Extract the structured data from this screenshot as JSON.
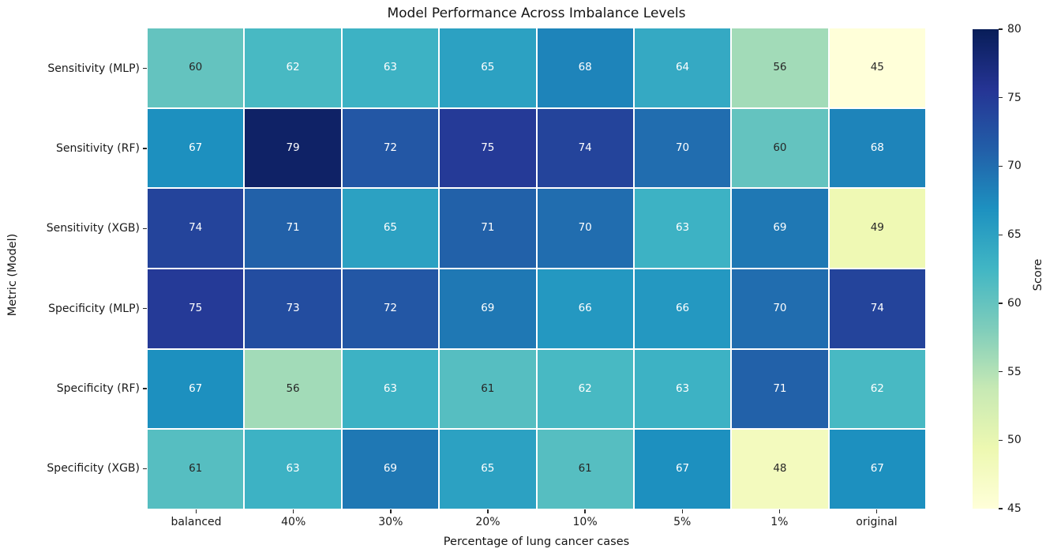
{
  "figure": {
    "title": "Model Performance Across Imbalance Levels",
    "xlabel": "Percentage of lung cancer cases",
    "ylabel": "Metric (Model)"
  },
  "chart_data": {
    "type": "heatmap",
    "title": "Model Performance Across Imbalance Levels",
    "xlabel": "Percentage of lung cancer cases",
    "ylabel": "Metric (Model)",
    "columns": [
      "balanced",
      "40%",
      "30%",
      "20%",
      "10%",
      "5%",
      "1%",
      "original"
    ],
    "rows": [
      "Sensitivity (MLP)",
      "Sensitivity (RF)",
      "Sensitivity (XGB)",
      "Specificity (MLP)",
      "Specificity (RF)",
      "Specificity (XGB)"
    ],
    "values": [
      [
        60,
        62,
        63,
        65,
        68,
        64,
        56,
        45
      ],
      [
        67,
        79,
        72,
        75,
        74,
        70,
        60,
        68
      ],
      [
        74,
        71,
        65,
        71,
        70,
        63,
        69,
        49
      ],
      [
        75,
        73,
        72,
        69,
        66,
        66,
        70,
        74
      ],
      [
        67,
        56,
        63,
        61,
        62,
        63,
        71,
        62
      ],
      [
        61,
        63,
        69,
        65,
        61,
        67,
        48,
        67
      ]
    ],
    "annotations_shown": true,
    "grid_lines": "white, 2px between cells",
    "colorbar": {
      "label": "Score",
      "ticks": [
        80,
        75,
        70,
        65,
        60,
        55,
        50,
        45
      ],
      "vmin": 45,
      "vmax": 80,
      "position": "right"
    },
    "colormap": {
      "name": "YlGnBu",
      "stops": [
        "#ffffd9",
        "#edf8b1",
        "#c7e9b4",
        "#7fcdbb",
        "#41b6c4",
        "#1d91c0",
        "#225ea8",
        "#253494",
        "#081d58"
      ]
    },
    "annotation_colors": {
      "dark_text": "#262626",
      "light_text": "#ffffff",
      "luminance_threshold": 0.408
    }
  }
}
